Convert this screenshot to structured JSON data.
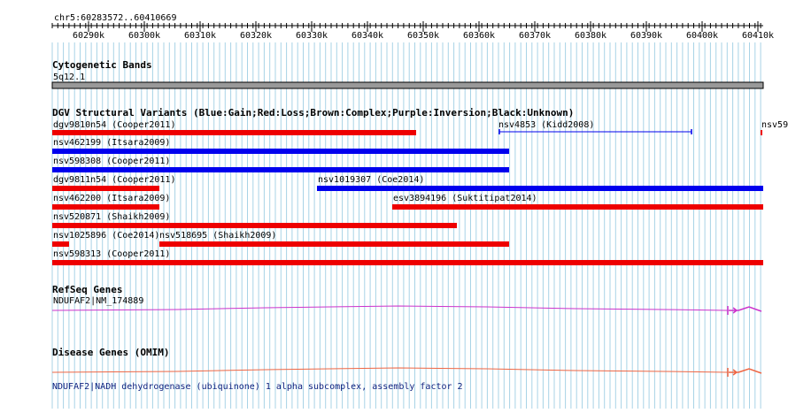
{
  "ruler": {
    "range_label": "chr5:60283572..60410669",
    "ticks": [
      "60290k",
      "60300k",
      "60310k",
      "60320k",
      "60330k",
      "60340k",
      "60350k",
      "60360k",
      "60370k",
      "60380k",
      "60390k",
      "60400k",
      "60410k"
    ]
  },
  "tracks": {
    "cytoband": {
      "title": "Cytogenetic Bands",
      "band_label": "5q12.1"
    },
    "dgv": {
      "title": "DGV Structural Variants (Blue:Gain;Red:Loss;Brown:Complex;Purple:Inversion;Black:Unknown)",
      "variants": [
        {
          "label": "dgv9810n54 (Cooper2011)",
          "type": "loss"
        },
        {
          "label": "nsv4853 (Kidd2008)",
          "type": "gain"
        },
        {
          "label": "nsv59",
          "type": "loss"
        },
        {
          "label": "nsv462199 (Itsara2009)",
          "type": "gain"
        },
        {
          "label": "nsv598308 (Cooper2011)",
          "type": "gain"
        },
        {
          "label": "dgv9811n54 (Cooper2011)",
          "type": "loss"
        },
        {
          "label": "nsv1019307 (Coe2014)",
          "type": "gain"
        },
        {
          "label": "nsv462200 (Itsara2009)",
          "type": "loss"
        },
        {
          "label": "esv3894196 (Suktitipat2014)",
          "type": "loss"
        },
        {
          "label": "nsv520871 (Shaikh2009)",
          "type": "loss"
        },
        {
          "label": "nsv1025896 (Coe2014)",
          "type": "loss"
        },
        {
          "label": "nsv518695 (Shaikh2009)",
          "type": "loss"
        },
        {
          "label": "nsv598313 (Cooper2011)",
          "type": "loss"
        }
      ]
    },
    "refseq": {
      "title": "RefSeq Genes",
      "gene_label": "NDUFAF2|NM_174889"
    },
    "omim": {
      "title": "Disease Genes (OMIM)",
      "gene_label": "NDUFAF2|NADH dehydrogenase (ubiquinone) 1 alpha subcomplex, assembly factor 2"
    }
  },
  "colors": {
    "gain": "#0000ee",
    "loss": "#ee0000",
    "grid": "#a8d3e6",
    "refseq": "#cc33cc",
    "omim": "#ee6644",
    "cytoband": "#999999"
  }
}
